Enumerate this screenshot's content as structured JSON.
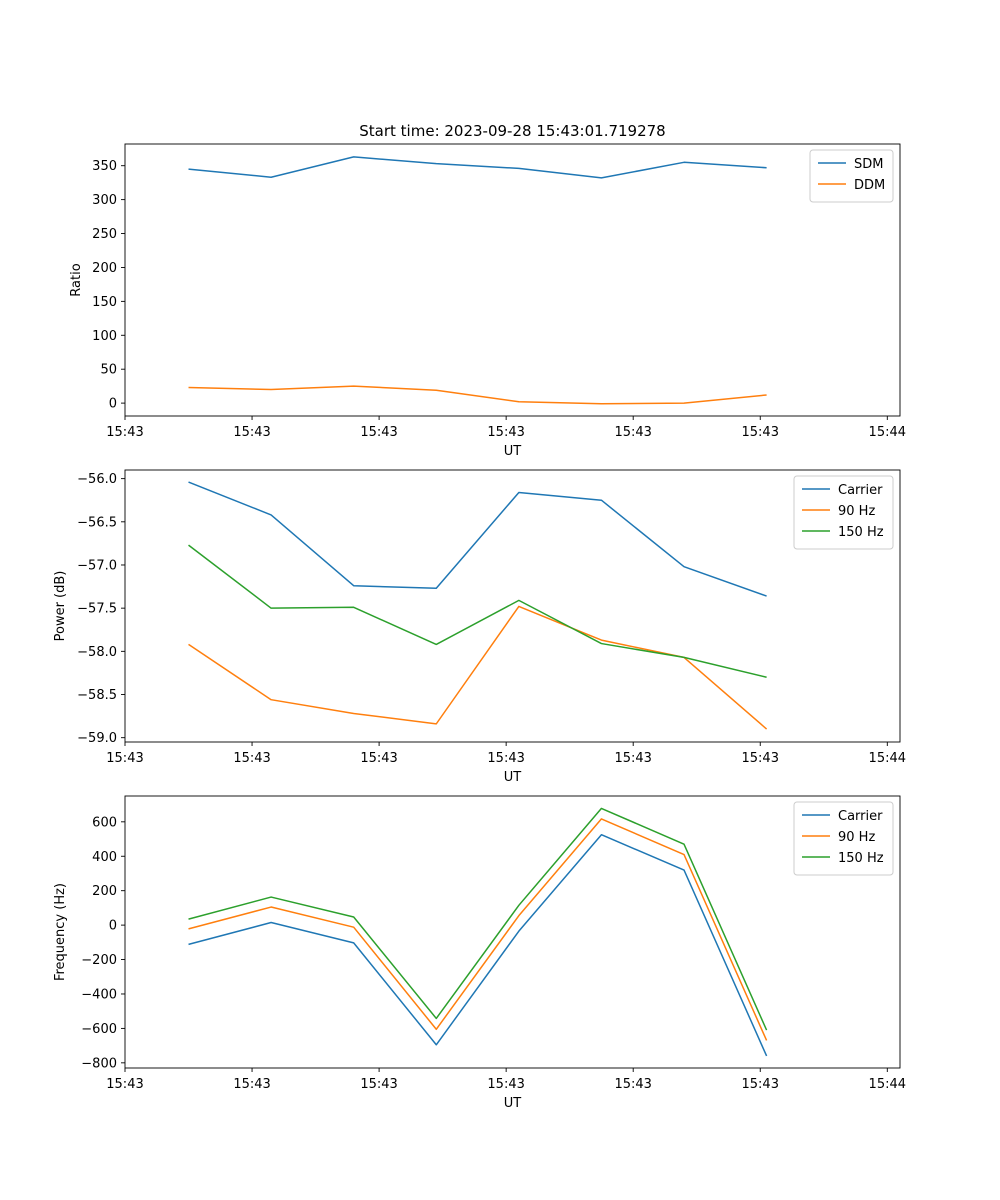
{
  "figure": {
    "title": "Start time: 2023-09-28 15:43:01.719278"
  },
  "colors": {
    "blue": "#1f77b4",
    "orange": "#ff7f0e",
    "green": "#2ca02c"
  },
  "chart_data": [
    {
      "id": "ratio",
      "type": "line",
      "title": "Start time: 2023-09-28 15:43:01.719278",
      "xlabel": "UT",
      "ylabel": "Ratio",
      "xlim": [
        0,
        6.1
      ],
      "x_ticks": [
        0.0,
        1.0,
        2.0,
        3.0,
        4.0,
        5.0,
        6.0
      ],
      "x_tick_labels": [
        "15:43",
        "15:43",
        "15:43",
        "15:43",
        "15:43",
        "15:43",
        "15:44"
      ],
      "ylim": [
        -19,
        382
      ],
      "y_ticks": [
        0,
        50,
        100,
        150,
        200,
        250,
        300,
        350
      ],
      "y_tick_labels": [
        "0",
        "50",
        "100",
        "150",
        "200",
        "250",
        "300",
        "350"
      ],
      "legend_position": "top-right",
      "x": [
        0.5,
        1.15,
        1.8,
        2.45,
        3.1,
        3.75,
        4.4,
        5.05
      ],
      "series": [
        {
          "name": "SDM",
          "color": "#1f77b4",
          "values": [
            345,
            333,
            363,
            353,
            346,
            332,
            355,
            347
          ]
        },
        {
          "name": "DDM",
          "color": "#ff7f0e",
          "values": [
            23,
            20,
            25,
            19,
            2,
            -1,
            0,
            12
          ]
        }
      ]
    },
    {
      "id": "power",
      "type": "line",
      "title": "",
      "xlabel": "UT",
      "ylabel": "Power (dB)",
      "xlim": [
        0,
        6.1
      ],
      "x_ticks": [
        0.0,
        1.0,
        2.0,
        3.0,
        4.0,
        5.0,
        6.0
      ],
      "x_tick_labels": [
        "15:43",
        "15:43",
        "15:43",
        "15:43",
        "15:43",
        "15:43",
        "15:44"
      ],
      "ylim": [
        -59.05,
        -55.9
      ],
      "y_ticks": [
        -59.0,
        -58.5,
        -58.0,
        -57.5,
        -57.0,
        -56.5,
        -56.0
      ],
      "y_tick_labels": [
        "−59.0",
        "−58.5",
        "−58.0",
        "−57.5",
        "−57.0",
        "−56.5",
        "−56.0"
      ],
      "legend_position": "top-right",
      "x": [
        0.5,
        1.15,
        1.8,
        2.45,
        3.1,
        3.75,
        4.4,
        5.05
      ],
      "series": [
        {
          "name": "Carrier",
          "color": "#1f77b4",
          "values": [
            -56.04,
            -56.42,
            -57.24,
            -57.27,
            -56.16,
            -56.25,
            -57.02,
            -57.36
          ]
        },
        {
          "name": "90 Hz",
          "color": "#ff7f0e",
          "values": [
            -57.92,
            -58.56,
            -58.72,
            -58.84,
            -57.48,
            -57.87,
            -58.07,
            -58.9
          ]
        },
        {
          "name": "150 Hz",
          "color": "#2ca02c",
          "values": [
            -56.77,
            -57.5,
            -57.49,
            -57.92,
            -57.41,
            -57.91,
            -58.07,
            -58.3
          ]
        }
      ]
    },
    {
      "id": "frequency",
      "type": "line",
      "title": "",
      "xlabel": "UT",
      "ylabel": "Frequency (Hz)",
      "xlim": [
        0,
        6.1
      ],
      "x_ticks": [
        0.0,
        1.0,
        2.0,
        3.0,
        4.0,
        5.0,
        6.0
      ],
      "x_tick_labels": [
        "15:43",
        "15:43",
        "15:43",
        "15:43",
        "15:43",
        "15:43",
        "15:44"
      ],
      "ylim": [
        -830,
        750
      ],
      "y_ticks": [
        -800,
        -600,
        -400,
        -200,
        0,
        200,
        400,
        600
      ],
      "y_tick_labels": [
        "−800",
        "−600",
        "−400",
        "−200",
        "0",
        "200",
        "400",
        "600"
      ],
      "legend_position": "top-right",
      "x": [
        0.5,
        1.15,
        1.8,
        2.45,
        3.1,
        3.75,
        4.4,
        5.05
      ],
      "series": [
        {
          "name": "Carrier",
          "color": "#1f77b4",
          "values": [
            -112,
            15,
            -103,
            -695,
            -35,
            525,
            320,
            -760
          ]
        },
        {
          "name": "90 Hz",
          "color": "#ff7f0e",
          "values": [
            -22,
            105,
            -12,
            -605,
            55,
            617,
            410,
            -670
          ]
        },
        {
          "name": "150 Hz",
          "color": "#2ca02c",
          "values": [
            35,
            163,
            47,
            -542,
            115,
            678,
            470,
            -610
          ]
        }
      ]
    }
  ]
}
